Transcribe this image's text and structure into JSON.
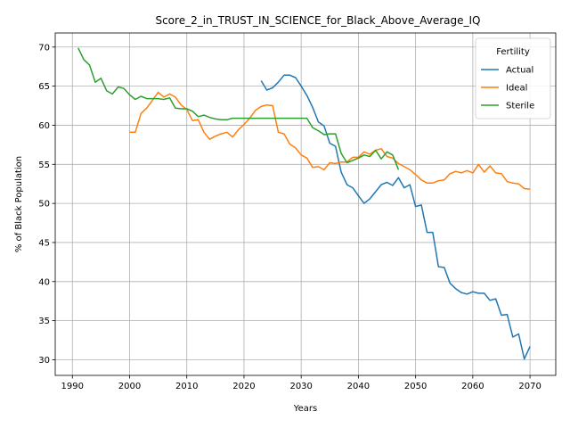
{
  "chart_data": {
    "type": "line",
    "title": "Score_2_in_TRUST_IN_SCIENCE_for_Black_Above_Average_IQ",
    "xlabel": "Years",
    "ylabel": "% of Black Population",
    "xlim": [
      1987,
      2074.5
    ],
    "ylim": [
      28.0,
      71.8
    ],
    "xticks": [
      1990,
      2000,
      2010,
      2020,
      2030,
      2040,
      2050,
      2060,
      2070
    ],
    "yticks": [
      30,
      35,
      40,
      45,
      50,
      55,
      60,
      65,
      70
    ],
    "grid": true,
    "legend": {
      "title": "Fertility",
      "placement": "top-right"
    },
    "series": [
      {
        "name": "Actual",
        "color": "#1f77b4",
        "x": [
          2023,
          2024,
          2025,
          2026,
          2027,
          2028,
          2029,
          2030,
          2031,
          2032,
          2033,
          2034,
          2035,
          2036,
          2037,
          2038,
          2039,
          2040,
          2041,
          2042,
          2043,
          2044,
          2045,
          2046,
          2047,
          2048,
          2049,
          2050,
          2051,
          2052,
          2053,
          2054,
          2055,
          2056,
          2057,
          2058,
          2059,
          2060,
          2061,
          2062,
          2063,
          2064,
          2065,
          2066,
          2067,
          2068,
          2069,
          2070
        ],
        "y": [
          65.7,
          64.5,
          64.8,
          65.5,
          66.4,
          66.4,
          66.1,
          65.0,
          63.8,
          62.3,
          60.4,
          59.9,
          57.7,
          57.3,
          54.0,
          52.4,
          52.0,
          51.0,
          50.0,
          50.6,
          51.5,
          52.4,
          52.7,
          52.3,
          53.3,
          52.0,
          52.4,
          49.6,
          49.8,
          46.3,
          46.3,
          41.9,
          41.8,
          39.8,
          39.1,
          38.6,
          38.4,
          38.7,
          38.5,
          38.5,
          37.6,
          37.8,
          35.7,
          35.8,
          32.9,
          33.3,
          30.1,
          31.7
        ]
      },
      {
        "name": "Ideal",
        "color": "#ff7f0e",
        "x": [
          2000,
          2001,
          2002,
          2003,
          2004,
          2005,
          2006,
          2007,
          2008,
          2009,
          2010,
          2011,
          2012,
          2013,
          2014,
          2015,
          2016,
          2017,
          2018,
          2019,
          2020,
          2021,
          2022,
          2023,
          2024,
          2025,
          2026,
          2027,
          2028,
          2029,
          2030,
          2031,
          2032,
          2033,
          2034,
          2035,
          2036,
          2037,
          2038,
          2039,
          2040,
          2041,
          2042,
          2043,
          2044,
          2045,
          2046,
          2047,
          2048,
          2049,
          2050,
          2051,
          2052,
          2053,
          2054,
          2055,
          2056,
          2057,
          2058,
          2059,
          2060,
          2061,
          2062,
          2063,
          2064,
          2065,
          2066,
          2067,
          2068,
          2069,
          2070
        ],
        "y": [
          59.1,
          59.1,
          61.5,
          62.2,
          63.2,
          64.2,
          63.6,
          64.0,
          63.6,
          62.6,
          62.0,
          60.6,
          60.7,
          59.1,
          58.2,
          58.6,
          58.9,
          59.1,
          58.5,
          59.4,
          60.1,
          60.9,
          61.9,
          62.4,
          62.6,
          62.5,
          59.1,
          58.9,
          57.6,
          57.1,
          56.2,
          55.8,
          54.6,
          54.7,
          54.3,
          55.2,
          55.1,
          55.3,
          55.3,
          55.9,
          55.9,
          56.6,
          56.3,
          56.8,
          57.0,
          56.0,
          55.8,
          55.1,
          54.7,
          54.3,
          53.7,
          53.0,
          52.6,
          52.6,
          52.9,
          53.0,
          53.8,
          54.1,
          53.9,
          54.2,
          53.9,
          55.0,
          54.0,
          54.8,
          53.9,
          53.8,
          52.8,
          52.6,
          52.5,
          51.9,
          51.8
        ]
      },
      {
        "name": "Sterile",
        "color": "#2ca02c",
        "x": [
          1991,
          1992,
          1993,
          1994,
          1995,
          1996,
          1997,
          1998,
          1999,
          2000,
          2001,
          2002,
          2003,
          2004,
          2005,
          2006,
          2007,
          2008,
          2009,
          2010,
          2011,
          2012,
          2013,
          2014,
          2015,
          2016,
          2017,
          2018,
          2019,
          2020,
          2021,
          2022,
          2023,
          2024,
          2025,
          2026,
          2027,
          2028,
          2029,
          2030,
          2031,
          2032,
          2033,
          2034,
          2035,
          2036,
          2037,
          2038,
          2039,
          2040,
          2041,
          2042,
          2043,
          2044,
          2045,
          2046,
          2047
        ],
        "y": [
          69.9,
          68.4,
          67.7,
          65.5,
          66.0,
          64.4,
          64.0,
          64.9,
          64.7,
          63.9,
          63.3,
          63.7,
          63.4,
          63.4,
          63.4,
          63.3,
          63.5,
          62.2,
          62.1,
          62.1,
          61.8,
          61.1,
          61.3,
          61.0,
          60.8,
          60.7,
          60.7,
          60.9,
          60.9,
          60.9,
          60.9,
          60.9,
          60.9,
          60.9,
          60.9,
          60.9,
          60.9,
          60.9,
          60.9,
          60.9,
          60.9,
          59.7,
          59.3,
          58.8,
          58.9,
          58.9,
          56.4,
          55.2,
          55.5,
          55.8,
          56.2,
          56.0,
          56.8,
          55.7,
          56.6,
          56.2,
          54.3
        ]
      }
    ]
  }
}
